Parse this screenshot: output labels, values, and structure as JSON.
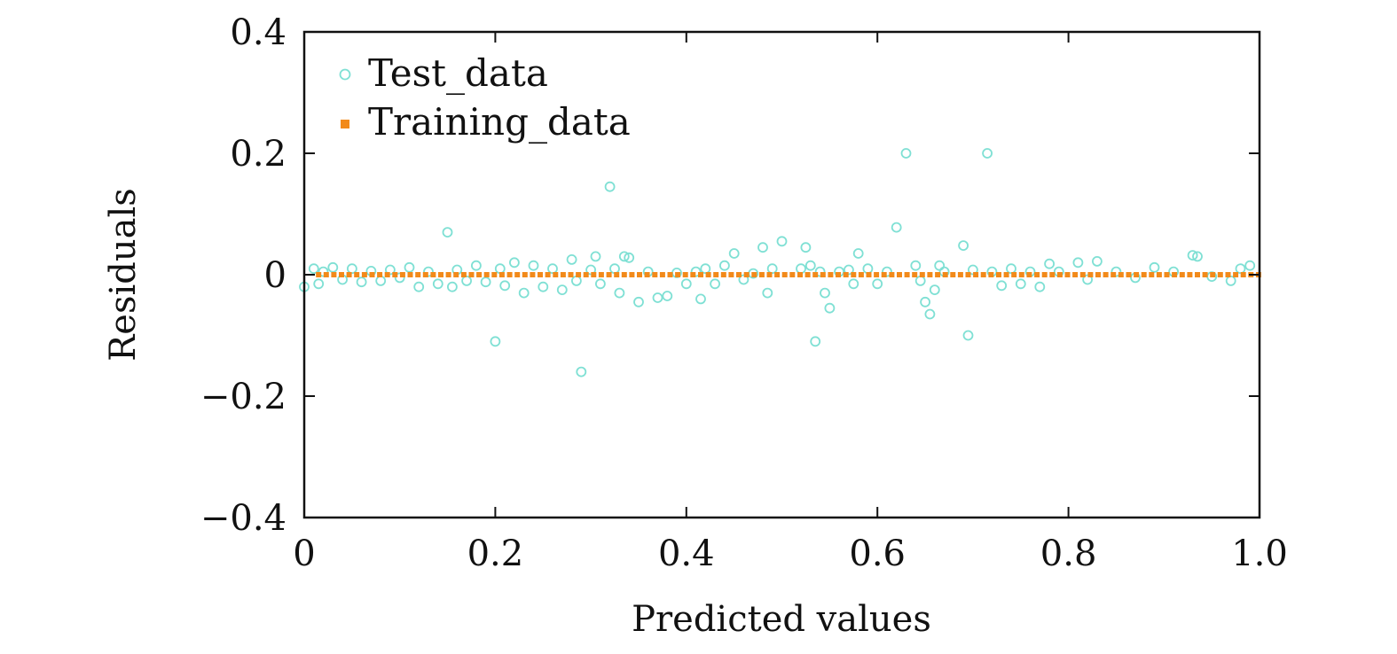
{
  "chart_data": {
    "type": "scatter",
    "title": "",
    "xlabel": "Predicted values",
    "ylabel": "Residuals",
    "xlim": [
      0,
      1.0
    ],
    "ylim": [
      -0.4,
      0.4
    ],
    "x_ticks": [
      0,
      0.2,
      0.4,
      0.6,
      0.8,
      1.0
    ],
    "x_tick_labels": [
      "0",
      "0.2",
      "0.4",
      "0.6",
      "0.8",
      "1.0"
    ],
    "y_ticks": [
      -0.4,
      -0.2,
      0,
      0.2,
      0.4
    ],
    "y_tick_labels": [
      "−0.4",
      "−0.2",
      "0",
      "0.2",
      "0.4"
    ],
    "legend_position": "top-left",
    "grid": false,
    "series": [
      {
        "name": "Test_data",
        "marker": "open-circle",
        "color": "#7fe0d4",
        "points": [
          [
            0.0,
            -0.02
          ],
          [
            0.01,
            0.01
          ],
          [
            0.015,
            -0.015
          ],
          [
            0.02,
            0.005
          ],
          [
            0.03,
            0.012
          ],
          [
            0.04,
            -0.008
          ],
          [
            0.05,
            0.01
          ],
          [
            0.06,
            -0.012
          ],
          [
            0.07,
            0.006
          ],
          [
            0.08,
            -0.01
          ],
          [
            0.09,
            0.008
          ],
          [
            0.1,
            -0.005
          ],
          [
            0.11,
            0.012
          ],
          [
            0.12,
            -0.02
          ],
          [
            0.13,
            0.005
          ],
          [
            0.14,
            -0.015
          ],
          [
            0.15,
            0.07
          ],
          [
            0.155,
            -0.02
          ],
          [
            0.16,
            0.008
          ],
          [
            0.17,
            -0.01
          ],
          [
            0.18,
            0.015
          ],
          [
            0.19,
            -0.012
          ],
          [
            0.2,
            -0.11
          ],
          [
            0.205,
            0.01
          ],
          [
            0.21,
            -0.018
          ],
          [
            0.22,
            0.02
          ],
          [
            0.23,
            -0.03
          ],
          [
            0.24,
            0.015
          ],
          [
            0.25,
            -0.02
          ],
          [
            0.26,
            0.01
          ],
          [
            0.27,
            -0.025
          ],
          [
            0.28,
            0.025
          ],
          [
            0.285,
            -0.01
          ],
          [
            0.29,
            -0.16
          ],
          [
            0.3,
            0.008
          ],
          [
            0.305,
            0.03
          ],
          [
            0.31,
            -0.015
          ],
          [
            0.32,
            0.145
          ],
          [
            0.325,
            0.01
          ],
          [
            0.33,
            -0.03
          ],
          [
            0.335,
            0.03
          ],
          [
            0.34,
            0.028
          ],
          [
            0.35,
            -0.045
          ],
          [
            0.36,
            0.005
          ],
          [
            0.37,
            -0.038
          ],
          [
            0.38,
            -0.035
          ],
          [
            0.39,
            0.003
          ],
          [
            0.4,
            -0.015
          ],
          [
            0.41,
            0.005
          ],
          [
            0.415,
            -0.04
          ],
          [
            0.42,
            0.01
          ],
          [
            0.43,
            -0.015
          ],
          [
            0.44,
            0.015
          ],
          [
            0.45,
            0.035
          ],
          [
            0.46,
            -0.008
          ],
          [
            0.47,
            0.002
          ],
          [
            0.48,
            0.045
          ],
          [
            0.485,
            -0.03
          ],
          [
            0.49,
            0.01
          ],
          [
            0.5,
            0.055
          ],
          [
            0.52,
            0.01
          ],
          [
            0.525,
            0.045
          ],
          [
            0.53,
            0.015
          ],
          [
            0.535,
            -0.11
          ],
          [
            0.54,
            0.005
          ],
          [
            0.545,
            -0.03
          ],
          [
            0.55,
            -0.055
          ],
          [
            0.56,
            0.005
          ],
          [
            0.57,
            0.008
          ],
          [
            0.575,
            -0.015
          ],
          [
            0.58,
            0.035
          ],
          [
            0.59,
            0.01
          ],
          [
            0.6,
            -0.015
          ],
          [
            0.61,
            0.005
          ],
          [
            0.62,
            0.078
          ],
          [
            0.63,
            0.2
          ],
          [
            0.64,
            0.015
          ],
          [
            0.645,
            -0.01
          ],
          [
            0.65,
            -0.045
          ],
          [
            0.655,
            -0.065
          ],
          [
            0.66,
            -0.025
          ],
          [
            0.665,
            0.015
          ],
          [
            0.67,
            0.005
          ],
          [
            0.69,
            0.048
          ],
          [
            0.695,
            -0.1
          ],
          [
            0.7,
            0.008
          ],
          [
            0.715,
            0.2
          ],
          [
            0.72,
            0.005
          ],
          [
            0.73,
            -0.018
          ],
          [
            0.74,
            0.01
          ],
          [
            0.75,
            -0.015
          ],
          [
            0.76,
            0.005
          ],
          [
            0.77,
            -0.02
          ],
          [
            0.78,
            0.018
          ],
          [
            0.79,
            0.005
          ],
          [
            0.81,
            0.02
          ],
          [
            0.82,
            -0.008
          ],
          [
            0.83,
            0.022
          ],
          [
            0.85,
            0.005
          ],
          [
            0.87,
            -0.005
          ],
          [
            0.89,
            0.012
          ],
          [
            0.91,
            0.005
          ],
          [
            0.93,
            0.032
          ],
          [
            0.935,
            0.03
          ],
          [
            0.95,
            -0.003
          ],
          [
            0.97,
            -0.01
          ],
          [
            0.98,
            0.01
          ],
          [
            0.99,
            0.015
          ]
        ]
      },
      {
        "name": "Training_data",
        "marker": "filled-square",
        "color": "#f28a1a",
        "x_start": 0.015,
        "x_end": 1.0,
        "x_step": 0.008,
        "y": 0.0
      }
    ]
  }
}
